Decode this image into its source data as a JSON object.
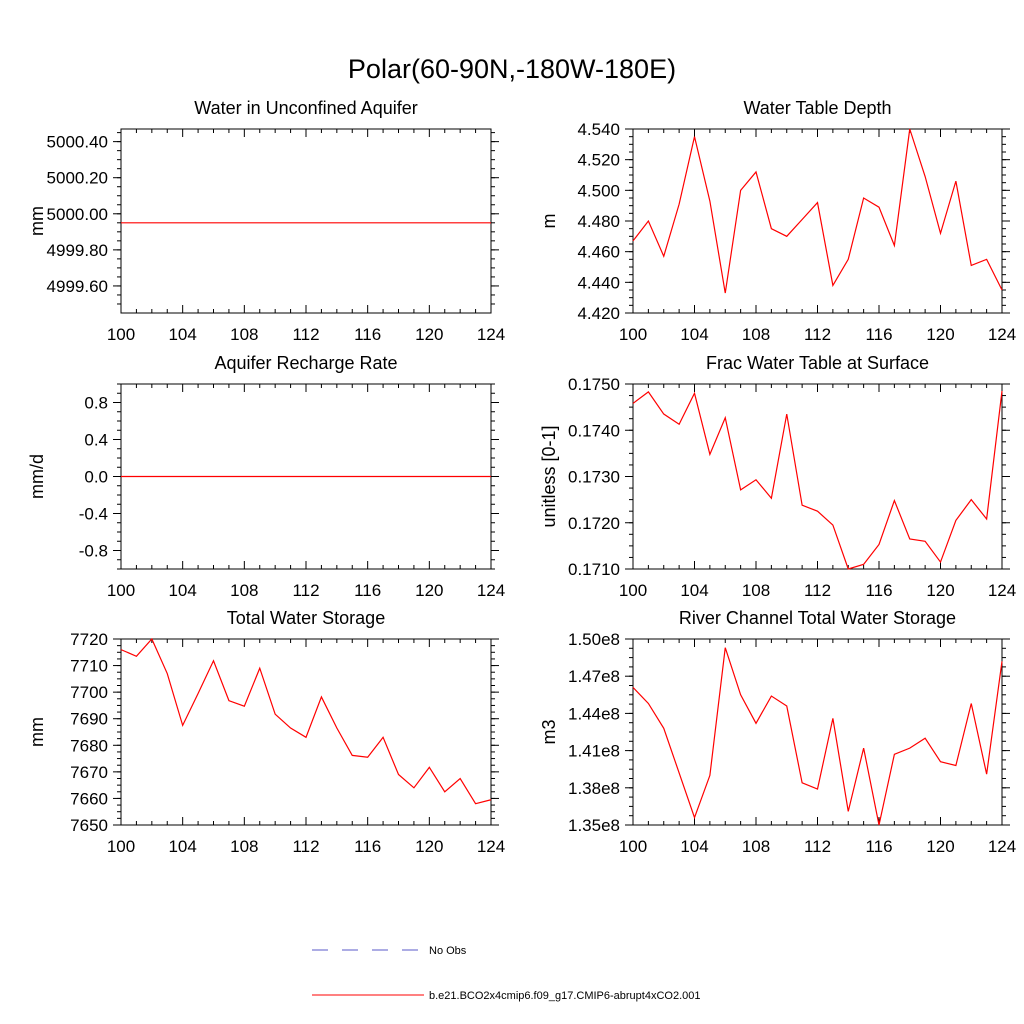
{
  "figure_title": "Polar(60-90N,-180W-180E)",
  "colors": {
    "model": "#ff0000",
    "obs": "#5a5ac8",
    "axis": "#000000"
  },
  "legend": [
    {
      "label": "No Obs",
      "style": "dashed",
      "color": "#5a5ac8"
    },
    {
      "label": "b.e21.BCO2x4cmip6.f09_g17.CMIP6-abrupt4xCO2.001",
      "style": "solid",
      "color": "#ff0000"
    }
  ],
  "chart_data": [
    {
      "type": "line",
      "title": "Water in Unconfined Aquifer",
      "ylabel": "mm",
      "xlim": [
        100,
        124
      ],
      "ylim": [
        4999.45,
        5000.47
      ],
      "xticks": [
        "100",
        "104",
        "108",
        "112",
        "116",
        "120",
        "124"
      ],
      "yticks": [
        "4999.60",
        "4999.80",
        "5000.00",
        "5000.20",
        "5000.40"
      ],
      "series": [
        {
          "x": [
            100,
            101,
            102,
            103,
            104,
            105,
            106,
            107,
            108,
            109,
            110,
            111,
            112,
            113,
            114,
            115,
            116,
            117,
            118,
            119,
            120,
            121,
            122,
            123,
            124
          ],
          "values": [
            4999.95,
            4999.95,
            4999.95,
            4999.95,
            4999.95,
            4999.95,
            4999.95,
            4999.95,
            4999.95,
            4999.95,
            4999.95,
            4999.95,
            4999.95,
            4999.95,
            4999.95,
            4999.95,
            4999.95,
            4999.95,
            4999.95,
            4999.95,
            4999.95,
            4999.95,
            4999.95,
            4999.95,
            4999.95
          ]
        }
      ]
    },
    {
      "type": "line",
      "title": "Water Table Depth",
      "ylabel": "m",
      "xlim": [
        100,
        124
      ],
      "ylim": [
        4.42,
        4.54
      ],
      "xticks": [
        "100",
        "104",
        "108",
        "112",
        "116",
        "120",
        "124"
      ],
      "yticks": [
        "4.420",
        "4.440",
        "4.460",
        "4.480",
        "4.500",
        "4.520",
        "4.540"
      ],
      "series": [
        {
          "x": [
            100,
            101,
            102,
            103,
            104,
            105,
            106,
            107,
            108,
            109,
            110,
            111,
            112,
            113,
            114,
            115,
            116,
            117,
            118,
            119,
            120,
            121,
            122,
            123,
            124
          ],
          "values": [
            4.467,
            4.48,
            4.457,
            4.491,
            4.535,
            4.493,
            4.433,
            4.5,
            4.512,
            4.475,
            4.47,
            4.481,
            4.492,
            4.438,
            4.455,
            4.495,
            4.489,
            4.464,
            4.54,
            4.509,
            4.472,
            4.506,
            4.451,
            4.455,
            4.435
          ]
        }
      ]
    },
    {
      "type": "line",
      "title": "Aquifer Recharge Rate",
      "ylabel": "mm/d",
      "xlim": [
        100,
        124
      ],
      "ylim": [
        -1.0,
        1.0
      ],
      "xticks": [
        "100",
        "104",
        "108",
        "112",
        "116",
        "120",
        "124"
      ],
      "yticks": [
        "-0.8",
        "-0.4",
        "0.0",
        "0.4",
        "0.8"
      ],
      "series": [
        {
          "x": [
            100,
            101,
            102,
            103,
            104,
            105,
            106,
            107,
            108,
            109,
            110,
            111,
            112,
            113,
            114,
            115,
            116,
            117,
            118,
            119,
            120,
            121,
            122,
            123,
            124
          ],
          "values": [
            0,
            0,
            0,
            0,
            0,
            0,
            0,
            0,
            0,
            0,
            0,
            0,
            0,
            0,
            0,
            0,
            0,
            0,
            0,
            0,
            0,
            0,
            0,
            0,
            0
          ]
        }
      ]
    },
    {
      "type": "line",
      "title": "Frac Water Table at Surface",
      "ylabel": "unitless [0-1]",
      "xlim": [
        100,
        124
      ],
      "ylim": [
        0.171,
        0.175
      ],
      "xticks": [
        "100",
        "104",
        "108",
        "112",
        "116",
        "120",
        "124"
      ],
      "yticks": [
        "0.1710",
        "0.1720",
        "0.1730",
        "0.1740",
        "0.1750"
      ],
      "series": [
        {
          "x": [
            100,
            101,
            102,
            103,
            104,
            105,
            106,
            107,
            108,
            109,
            110,
            111,
            112,
            113,
            114,
            115,
            116,
            117,
            118,
            119,
            120,
            121,
            122,
            123,
            124
          ],
          "values": [
            0.17458,
            0.17483,
            0.17435,
            0.17413,
            0.1748,
            0.17348,
            0.17427,
            0.17271,
            0.17293,
            0.17253,
            0.17435,
            0.17238,
            0.17225,
            0.17195,
            0.171,
            0.1711,
            0.17153,
            0.17248,
            0.17165,
            0.1716,
            0.17115,
            0.17205,
            0.1725,
            0.17208,
            0.17485
          ]
        }
      ]
    },
    {
      "type": "line",
      "title": "Total Water Storage",
      "ylabel": "mm",
      "xlim": [
        100,
        124
      ],
      "ylim": [
        7650,
        7720
      ],
      "xticks": [
        "100",
        "104",
        "108",
        "112",
        "116",
        "120",
        "124"
      ],
      "yticks": [
        "7650",
        "7660",
        "7670",
        "7680",
        "7690",
        "7700",
        "7710",
        "7720"
      ],
      "series": [
        {
          "x": [
            100,
            101,
            102,
            103,
            104,
            105,
            106,
            107,
            108,
            109,
            110,
            111,
            112,
            113,
            114,
            115,
            116,
            117,
            118,
            119,
            120,
            121,
            122,
            123,
            124
          ],
          "values": [
            7716,
            7713.5,
            7720,
            7707,
            7687.5,
            7699.5,
            7711.8,
            7696.8,
            7694.7,
            7709,
            7691.7,
            7686.5,
            7683,
            7698.2,
            7686.5,
            7676.2,
            7675.5,
            7683,
            7669,
            7664,
            7671.7,
            7662.5,
            7667.5,
            7658,
            7659.5
          ]
        }
      ]
    },
    {
      "type": "line",
      "title": "River Channel Total Water Storage",
      "ylabel": "m3",
      "xlim": [
        100,
        124
      ],
      "ylim": [
        135000000.0,
        150000000.0
      ],
      "xticks": [
        "100",
        "104",
        "108",
        "112",
        "116",
        "120",
        "124"
      ],
      "yticks": [
        "1.35e8",
        "1.38e8",
        "1.41e8",
        "1.44e8",
        "1.47e8",
        "1.50e8"
      ],
      "series": [
        {
          "x": [
            100,
            101,
            102,
            103,
            104,
            105,
            106,
            107,
            108,
            109,
            110,
            111,
            112,
            113,
            114,
            115,
            116,
            117,
            118,
            119,
            120,
            121,
            122,
            123,
            124
          ],
          "values": [
            146100000.0,
            144800000.0,
            142800000.0,
            139200000.0,
            135600000.0,
            139000000.0,
            149300000.0,
            145500000.0,
            143200000.0,
            145400000.0,
            144600000.0,
            138400000.0,
            137900000.0,
            143600000.0,
            136100000.0,
            141200000.0,
            135000000.0,
            140700000.0,
            141200000.0,
            142000000.0,
            140100000.0,
            139800000.0,
            144800000.0,
            139100000.0,
            148200000.0
          ]
        }
      ]
    }
  ]
}
